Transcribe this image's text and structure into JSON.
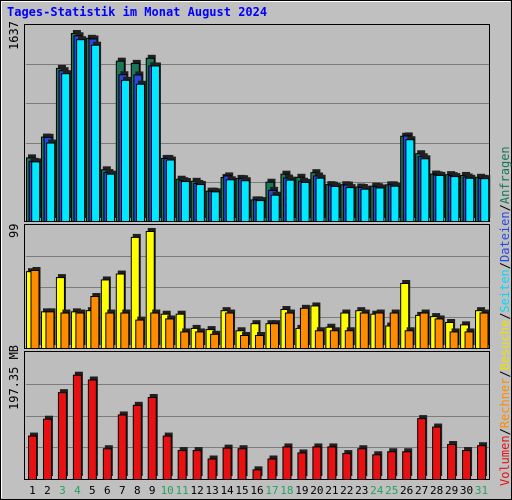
{
  "title": "Tages-Statistik im Monat August 2024",
  "colors": {
    "background": "#c0c0c0",
    "panel": "#bdbdbd",
    "grid": "#7c7c7c",
    "anfragen": "#187858",
    "dateien": "#2848e0",
    "seiten": "#00e8ff",
    "besuche": "#ffff00",
    "rechner": "#ff8c00",
    "volumen": "#e81010",
    "weekday_label": "#000000",
    "weekend_label": "#28a060"
  },
  "legend": {
    "anfragen": "Anfragen",
    "dateien": "Dateien",
    "seiten": "Seiten",
    "besuche": "Besuche",
    "rechner": "Rechner",
    "volumen": "Volumen",
    "sep": "/"
  },
  "chart_data": [
    {
      "type": "bar",
      "panel": "top",
      "ymax_label": "1637",
      "ylim": [
        0,
        1637
      ],
      "categories": [
        "1",
        "2",
        "3",
        "4",
        "5",
        "6",
        "7",
        "8",
        "9",
        "10",
        "11",
        "12",
        "13",
        "14",
        "15",
        "16",
        "17",
        "18",
        "19",
        "20",
        "21",
        "22",
        "23",
        "24",
        "25",
        "26",
        "27",
        "28",
        "29",
        "30",
        "31"
      ],
      "weekend": [
        false,
        false,
        true,
        true,
        false,
        false,
        false,
        false,
        false,
        true,
        true,
        false,
        false,
        false,
        false,
        false,
        true,
        true,
        false,
        false,
        false,
        false,
        false,
        true,
        true,
        false,
        false,
        false,
        false,
        false,
        true
      ],
      "series": [
        {
          "name": "Anfragen",
          "values": [
            554,
            735,
            1333,
            1637,
            1595,
            450,
            1396,
            1377,
            1421,
            549,
            368,
            350,
            264,
            383,
            375,
            188,
            342,
            412,
            385,
            425,
            321,
            320,
            300,
            308,
            319,
            742,
            590,
            413,
            408,
            401,
            385
          ]
        },
        {
          "name": "Dateien",
          "values": [
            524,
            733,
            1313,
            1617,
            1589,
            426,
            1278,
            1276,
            1355,
            549,
            355,
            331,
            264,
            397,
            372,
            188,
            271,
            378,
            350,
            396,
            316,
            317,
            296,
            303,
            319,
            745,
            564,
            406,
            399,
            387,
            376
          ]
        },
        {
          "name": "Seiten",
          "values": [
            519,
            683,
            1287,
            1583,
            1535,
            412,
            1229,
            1195,
            1354,
            535,
            348,
            322,
            258,
            363,
            355,
            182,
            229,
            360,
            340,
            377,
            305,
            295,
            281,
            292,
            307,
            712,
            546,
            401,
            391,
            376,
            373
          ]
        }
      ]
    },
    {
      "type": "bar",
      "panel": "middle",
      "ymax_label": "99",
      "ylim": [
        0,
        99
      ],
      "series": [
        {
          "name": "Besuche",
          "values": [
            65,
            31,
            60,
            31,
            32,
            58,
            63,
            94,
            99,
            29,
            29,
            17,
            16,
            32,
            15,
            21,
            21,
            33,
            17,
            36,
            18,
            30,
            32,
            29,
            19,
            55,
            28,
            27,
            22,
            20,
            32
          ]
        },
        {
          "name": "Rechner",
          "values": [
            66,
            31,
            30,
            30,
            44,
            30,
            30,
            24,
            30,
            25,
            14,
            14,
            12,
            30,
            11,
            11,
            21,
            30,
            34,
            15,
            15,
            15,
            30,
            30,
            30,
            15,
            30,
            25,
            14,
            14,
            30
          ]
        }
      ]
    },
    {
      "type": "bar",
      "panel": "bottom",
      "ymax_label": "197.35 MB",
      "ylim": [
        0,
        197.35
      ],
      "series": [
        {
          "name": "Volumen",
          "values": [
            72,
            100,
            144,
            173,
            165,
            51,
            107,
            123,
            136,
            72,
            48,
            48,
            34,
            52,
            51,
            16,
            34,
            54,
            44,
            54,
            54,
            43,
            51,
            41,
            46,
            46,
            101,
            87,
            58,
            48,
            56
          ]
        }
      ]
    }
  ]
}
